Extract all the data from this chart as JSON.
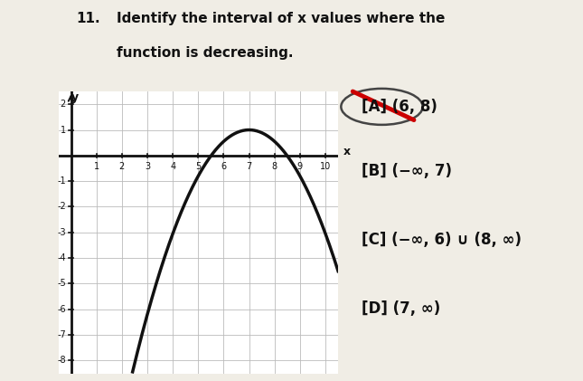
{
  "title_number": "11.",
  "title_line1": "Identify the interval of x values where the",
  "title_line2": "function is decreasing.",
  "graph": {
    "xlim": [
      -0.5,
      10.5
    ],
    "ylim": [
      -8.5,
      2.5
    ],
    "x_ticks": [
      1,
      2,
      3,
      4,
      5,
      6,
      7,
      8,
      9,
      10
    ],
    "y_ticks": [
      -8,
      -7,
      -6,
      -5,
      -4,
      -3,
      -2,
      -1,
      1,
      2
    ],
    "peak_x": 7,
    "peak_y": 1.0,
    "curve_coeff": -0.45
  },
  "choices": [
    {
      "label": "[A]",
      "text": "(6, 8)",
      "circled": true,
      "struck": true
    },
    {
      "label": "[B]",
      "text": "(−∞, 7)"
    },
    {
      "label": "[C]",
      "text": "(−∞, 6) ∪ (8, ∞)"
    },
    {
      "label": "[D]",
      "text": "(7, ∞)"
    }
  ],
  "bg_color": "#f0ede5",
  "graph_bg": "#ffffff",
  "grid_color": "#bbbbbb",
  "curve_color": "#111111",
  "axis_color": "#111111",
  "text_color": "#111111",
  "circle_color": "#444444",
  "strike_color": "#cc0000",
  "title_fontsize": 11,
  "choice_fontsize": 12
}
